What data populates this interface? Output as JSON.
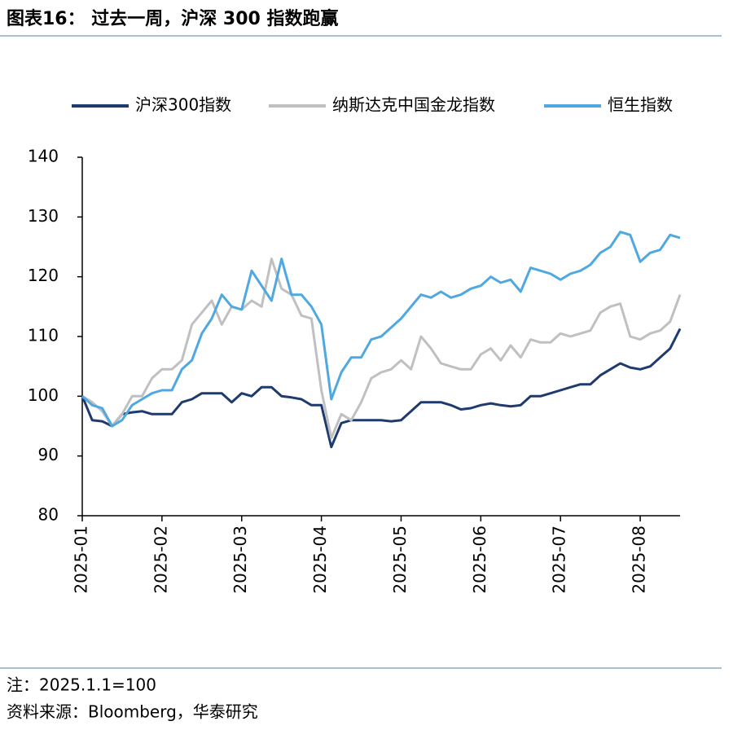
{
  "chart_data": {
    "type": "line",
    "title": "图表16： 过去一周，沪深 300 指数跑赢",
    "note": "注：2025.1.1=100",
    "source": "资料来源：Bloomberg，华泰研究",
    "categories": [
      "2025-01",
      null,
      null,
      null,
      null,
      null,
      null,
      null,
      "2025-02",
      null,
      null,
      null,
      null,
      null,
      null,
      null,
      "2025-03",
      null,
      null,
      null,
      null,
      null,
      null,
      null,
      "2025-04",
      null,
      null,
      null,
      null,
      null,
      null,
      null,
      "2025-05",
      null,
      null,
      null,
      null,
      null,
      null,
      null,
      "2025-06",
      null,
      null,
      null,
      null,
      null,
      null,
      null,
      "2025-07",
      null,
      null,
      null,
      null,
      null,
      null,
      null,
      "2025-08",
      null,
      null,
      null,
      null
    ],
    "series": [
      {
        "name": "沪深300指数",
        "color": "#1f3a6e",
        "values": [
          100,
          96,
          95.8,
          95,
          97,
          97.3,
          97.5,
          97,
          97,
          97,
          99,
          99.5,
          100.5,
          100.5,
          100.5,
          99,
          100.5,
          100,
          101.5,
          101.5,
          100,
          99.8,
          99.5,
          98.5,
          98.5,
          91.5,
          95.5,
          96,
          96,
          96,
          96,
          95.8,
          96,
          97.5,
          99,
          99,
          99,
          98.5,
          97.8,
          98,
          98.5,
          98.8,
          98.5,
          98.3,
          98.5,
          100,
          100,
          100.5,
          101,
          101.5,
          102,
          102,
          103.5,
          104.5,
          105.5,
          104.8,
          104.5,
          105,
          106.5,
          108,
          111.3
        ]
      },
      {
        "name": "纳斯达克中国金龙指数",
        "color": "#c0c0c0",
        "values": [
          100,
          99,
          97.5,
          95,
          97,
          100,
          100,
          103,
          104.5,
          104.5,
          106,
          112,
          114,
          116,
          112,
          115,
          114.5,
          116,
          115,
          123,
          118,
          117,
          113.5,
          113,
          101,
          93,
          97,
          96,
          99,
          103,
          104,
          104.5,
          106,
          104.5,
          110,
          108,
          105.5,
          105,
          104.5,
          104.5,
          107,
          108,
          106,
          108.5,
          106.5,
          109.5,
          109,
          109,
          110.5,
          110,
          110.5,
          111,
          114,
          115,
          115.5,
          110,
          109.5,
          110.5,
          111,
          112.5,
          117
        ]
      },
      {
        "name": "恒生指数",
        "color": "#4fa8e0",
        "values": [
          100,
          98.5,
          98,
          95,
          96,
          98.5,
          99.5,
          100.5,
          101,
          101,
          104.5,
          106,
          110.5,
          113,
          117,
          115,
          114.5,
          121,
          118.5,
          116,
          123,
          117,
          117,
          115,
          112,
          99.5,
          104,
          106.5,
          106.5,
          109.5,
          110,
          111.5,
          113,
          115,
          117,
          116.5,
          117.5,
          116.5,
          117,
          118,
          118.5,
          120,
          119,
          119.5,
          117.5,
          121.5,
          121,
          120.5,
          119.5,
          120.5,
          121,
          122,
          124,
          125,
          127.5,
          127,
          122.5,
          124,
          124.5,
          127,
          126.5
        ]
      }
    ],
    "ylim": [
      80,
      140
    ],
    "yticks": [
      80,
      90,
      100,
      110,
      120,
      130,
      140
    ]
  }
}
